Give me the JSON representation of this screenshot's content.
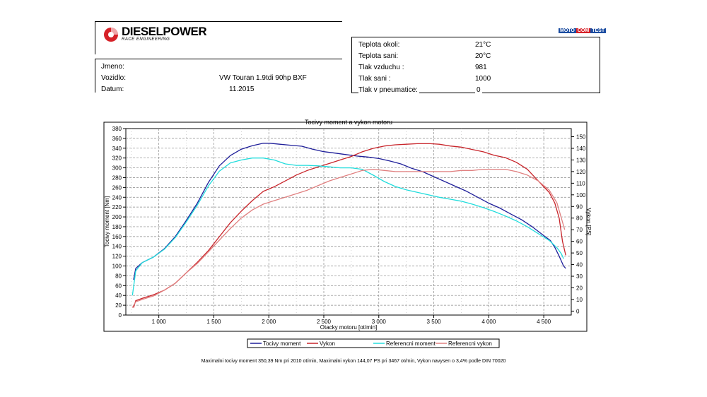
{
  "brand": {
    "name": "DIESELPOWER",
    "tagline": "RACE ENGINEERING",
    "badge_parts": [
      "MOTO",
      "COM",
      "TEST"
    ]
  },
  "info": {
    "jmeno_label": "Jmeno:",
    "vozidlo_label": "Vozidlo:",
    "vozidlo_value": "VW Touran 1.9tdi 90hp BXF",
    "datum_label": "Datum:",
    "datum_value": "11.2015"
  },
  "conditions": [
    {
      "label": "Teplota okoli:",
      "value": "21°C"
    },
    {
      "label": "Teplota sani:",
      "value": "20°C"
    },
    {
      "label": "Tlak vzduchu :",
      "value": "981"
    },
    {
      "label": "Tlak sani :",
      "value": "1000"
    },
    {
      "label": "Tlak v pneumatice:",
      "value": "0"
    }
  ],
  "chart_data": {
    "type": "line",
    "title": "Tocivy moment a vykon motoru",
    "xlabel": "Otacky motoru [ot/min]",
    "ylabel": "Tocivy moment [Nm]",
    "y2label": "Vykon [PS]",
    "xlim": [
      700,
      4750
    ],
    "ylim": [
      0,
      380
    ],
    "y2lim": [
      -3.4,
      157
    ],
    "x_ticks": [
      1000,
      1500,
      2000,
      2500,
      3000,
      3500,
      4000,
      4500
    ],
    "x_tick_labels": [
      "1 000",
      "1 500",
      "2 000",
      "2 500",
      "3 000",
      "3 500",
      "4 000",
      "4 500"
    ],
    "y_ticks": [
      0,
      20,
      40,
      60,
      80,
      100,
      120,
      140,
      160,
      180,
      200,
      220,
      240,
      260,
      280,
      300,
      320,
      340,
      360,
      380
    ],
    "y2_ticks": [
      0,
      10,
      20,
      30,
      40,
      50,
      60,
      70,
      80,
      90,
      100,
      110,
      120,
      130,
      140,
      150
    ],
    "grid": true,
    "series": [
      {
        "name": "Tocivy moment",
        "axis": "left",
        "color": "#1f1f9a",
        "x": [
          770,
          790,
          850,
          950,
          1050,
          1150,
          1250,
          1350,
          1450,
          1550,
          1650,
          1750,
          1850,
          1950,
          2010,
          2100,
          2200,
          2300,
          2400,
          2500,
          2600,
          2700,
          2800,
          2900,
          3000,
          3100,
          3200,
          3300,
          3400,
          3500,
          3600,
          3700,
          3800,
          3900,
          4000,
          4100,
          4200,
          4300,
          4400,
          4500,
          4560,
          4600,
          4640,
          4680,
          4700
        ],
        "y": [
          72,
          95,
          107,
          118,
          135,
          160,
          193,
          228,
          270,
          304,
          325,
          338,
          345,
          350,
          350,
          348,
          346,
          344,
          338,
          333,
          330,
          327,
          324,
          322,
          319,
          314,
          308,
          299,
          292,
          282,
          272,
          262,
          252,
          240,
          228,
          218,
          206,
          194,
          179,
          162,
          152,
          138,
          120,
          100,
          95
        ]
      },
      {
        "name": "Vykon",
        "axis": "right",
        "color": "#c8252b",
        "x": [
          770,
          790,
          850,
          950,
          1050,
          1150,
          1250,
          1350,
          1450,
          1550,
          1650,
          1750,
          1850,
          1950,
          2050,
          2150,
          2250,
          2350,
          2450,
          2550,
          2650,
          2750,
          2850,
          2950,
          3050,
          3150,
          3250,
          3350,
          3467,
          3550,
          3650,
          3750,
          3850,
          3950,
          4050,
          4150,
          4250,
          4350,
          4450,
          4550,
          4600,
          4640,
          4670,
          4700
        ],
        "y": [
          3,
          9,
          11,
          14,
          18,
          24,
          33,
          42,
          52,
          64,
          76,
          86,
          95,
          103,
          107,
          112,
          117,
          121,
          124,
          127,
          130,
          133,
          137,
          140,
          142,
          143,
          143.5,
          144,
          144,
          143.5,
          142,
          141,
          139,
          137,
          134,
          132,
          128,
          122,
          112,
          102,
          93,
          80,
          60,
          48
        ]
      },
      {
        "name": "Referencni moment",
        "axis": "left",
        "color": "#22dcdc",
        "x": [
          760,
          790,
          850,
          950,
          1050,
          1150,
          1250,
          1350,
          1450,
          1550,
          1650,
          1750,
          1850,
          1950,
          2050,
          2150,
          2250,
          2350,
          2450,
          2550,
          2650,
          2750,
          2850,
          2950,
          3050,
          3150,
          3250,
          3350,
          3450,
          3550,
          3650,
          3750,
          3850,
          3950,
          4050,
          4150,
          4250,
          4350,
          4450,
          4550,
          4620,
          4660,
          4680
        ],
        "y": [
          40,
          90,
          107,
          118,
          134,
          158,
          190,
          224,
          263,
          293,
          310,
          316,
          320,
          320,
          316,
          308,
          305,
          305,
          304,
          302,
          300,
          300,
          297,
          285,
          272,
          262,
          255,
          250,
          245,
          240,
          236,
          232,
          226,
          219,
          211,
          202,
          192,
          180,
          166,
          152,
          137,
          125,
          115
        ]
      },
      {
        "name": "Referencni vykon",
        "axis": "right",
        "color": "#e08080",
        "x": [
          760,
          790,
          850,
          950,
          1050,
          1150,
          1250,
          1350,
          1450,
          1550,
          1650,
          1750,
          1850,
          1950,
          2050,
          2150,
          2250,
          2350,
          2450,
          2550,
          2650,
          2750,
          2850,
          2950,
          3050,
          3150,
          3250,
          3350,
          3450,
          3550,
          3650,
          3750,
          3850,
          3950,
          4050,
          4150,
          4250,
          4350,
          4450,
          4550,
          4620,
          4660,
          4690
        ],
        "y": [
          3,
          8,
          10,
          13,
          18,
          24,
          33,
          41,
          51,
          61,
          71,
          80,
          87,
          92,
          95,
          98,
          101,
          104,
          108,
          112,
          115,
          118,
          121,
          122,
          121,
          120,
          120,
          120,
          120,
          120,
          120,
          121,
          121,
          122,
          122,
          122,
          120,
          117,
          112,
          104,
          93,
          80,
          70
        ]
      }
    ]
  },
  "legend": [
    "Tocivy moment",
    "Vykon",
    "Referencni moment",
    "Referencni vykon"
  ],
  "footer": "Maximalni tocivy moment 350,39 Nm pri 2010 ot/min,  Maximalni vykon 144,07 PS pri 3467 ot/min,  Vykon navysen o 3,4% podle DIN 70020"
}
